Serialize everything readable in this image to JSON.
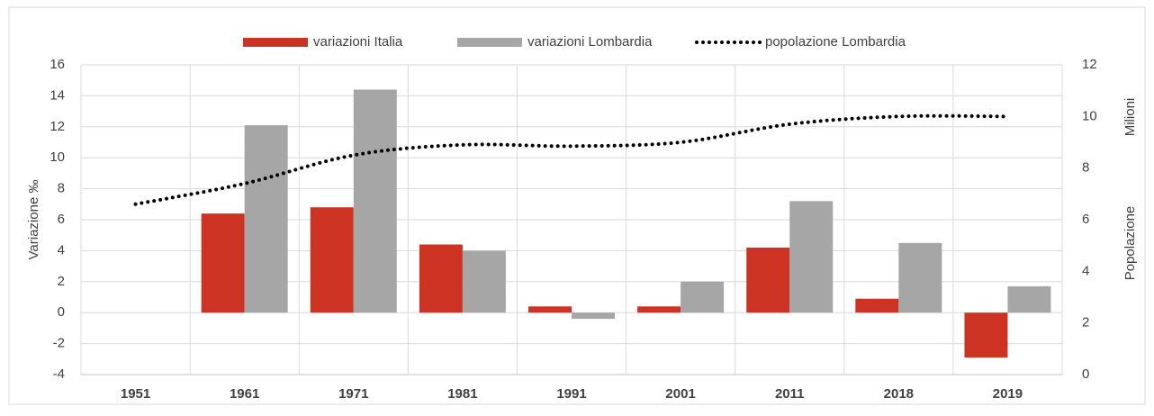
{
  "chart_data": {
    "type": "bar",
    "categories": [
      "1951",
      "1961",
      "1971",
      "1981",
      "1991",
      "2001",
      "2011",
      "2018",
      "2019"
    ],
    "series": [
      {
        "name": "variazioni Italia",
        "color": "#cc3322",
        "values": [
          null,
          6.4,
          6.8,
          4.4,
          0.4,
          0.4,
          4.2,
          0.9,
          -2.9
        ]
      },
      {
        "name": "variazioni Lombardia",
        "color": "#a6a6a6",
        "values": [
          null,
          12.1,
          14.4,
          4.0,
          -0.4,
          2.0,
          7.2,
          4.5,
          1.7
        ]
      },
      {
        "name": "popolazione Lombardia",
        "color": "#000000",
        "type": "line",
        "axis": "y2",
        "values": [
          6.6,
          7.4,
          8.5,
          8.9,
          8.85,
          9.0,
          9.7,
          10.0,
          10.0
        ]
      }
    ],
    "ylabel": "Variazione ‰",
    "y2label": [
      "Popolazione",
      "Milioni"
    ],
    "ylim": [
      -4,
      16
    ],
    "yticks": [
      -4,
      -2,
      0,
      2,
      4,
      6,
      8,
      10,
      12,
      14,
      16
    ],
    "y2lim": [
      0,
      12
    ],
    "y2ticks": [
      0,
      2,
      4,
      6,
      8,
      10,
      12
    ],
    "grid": true,
    "legend": "top"
  }
}
